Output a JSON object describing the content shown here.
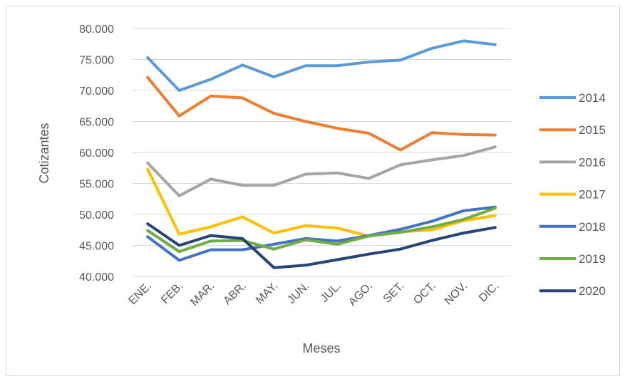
{
  "chart_data": {
    "type": "line",
    "title": "",
    "xlabel": "Meses",
    "ylabel": "Cotizantes",
    "ylim": [
      40000,
      80000
    ],
    "y_ticks": [
      40000,
      45000,
      50000,
      55000,
      60000,
      65000,
      70000,
      75000,
      80000
    ],
    "y_tick_labels": [
      "40.000",
      "45.000",
      "50.000",
      "55.000",
      "60.000",
      "65.000",
      "70.000",
      "75.000",
      "80.000"
    ],
    "grid": true,
    "legend_position": "right",
    "categories": [
      "ENE.",
      "FEB.",
      "MAR.",
      "ABR.",
      "MAY.",
      "JUN.",
      "JUL.",
      "AGO.",
      "SET.",
      "OCT.",
      "NOV.",
      "DIC."
    ],
    "series": [
      {
        "name": "2014",
        "color": "#5b9bd5",
        "values": [
          75300,
          70000,
          71800,
          74100,
          72200,
          74000,
          74000,
          74600,
          74900,
          76800,
          78000,
          77400
        ]
      },
      {
        "name": "2015",
        "color": "#ed7d31",
        "values": [
          72100,
          65900,
          69100,
          68800,
          66300,
          65000,
          63900,
          63100,
          60400,
          63200,
          62900,
          62800
        ]
      },
      {
        "name": "2016",
        "color": "#a5a5a5",
        "values": [
          58300,
          53000,
          55700,
          54700,
          54700,
          56500,
          56700,
          55800,
          58000,
          58800,
          59500,
          60900
        ]
      },
      {
        "name": "2017",
        "color": "#ffc000",
        "values": [
          57300,
          46800,
          48000,
          49600,
          47000,
          48200,
          47800,
          46500,
          47200,
          47500,
          49000,
          49800
        ]
      },
      {
        "name": "2018",
        "color": "#4472c4",
        "values": [
          46400,
          42600,
          44300,
          44300,
          45200,
          46100,
          45700,
          46600,
          47600,
          48900,
          50600,
          51200
        ]
      },
      {
        "name": "2019",
        "color": "#70ad47",
        "values": [
          47400,
          44000,
          45700,
          45800,
          44400,
          45900,
          45200,
          46500,
          47100,
          48000,
          49200,
          51000
        ]
      },
      {
        "name": "2020",
        "color": "#264478",
        "values": [
          48500,
          45000,
          46600,
          46100,
          41400,
          41800,
          42700,
          43600,
          44400,
          45800,
          47000,
          47900
        ]
      }
    ]
  }
}
